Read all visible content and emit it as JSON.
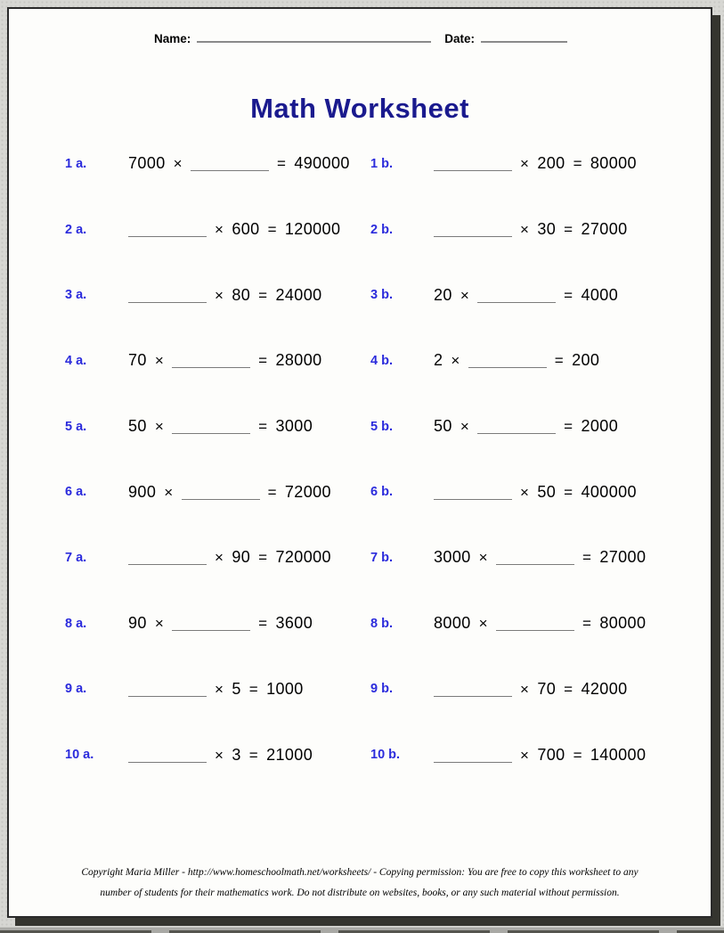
{
  "header": {
    "name_label": "Name:",
    "date_label": "Date:"
  },
  "title": "Math Worksheet",
  "ops": {
    "times": "×",
    "equals": "="
  },
  "rows": [
    {
      "a": {
        "label": "1 a.",
        "factor1": "7000",
        "factor2": null,
        "product": "490000"
      },
      "b": {
        "label": "1 b.",
        "factor1": null,
        "factor2": "200",
        "product": "80000"
      }
    },
    {
      "a": {
        "label": "2 a.",
        "factor1": null,
        "factor2": "600",
        "product": "120000"
      },
      "b": {
        "label": "2 b.",
        "factor1": null,
        "factor2": "30",
        "product": "27000"
      }
    },
    {
      "a": {
        "label": "3 a.",
        "factor1": null,
        "factor2": "80",
        "product": "24000"
      },
      "b": {
        "label": "3 b.",
        "factor1": "20",
        "factor2": null,
        "product": "4000"
      }
    },
    {
      "a": {
        "label": "4 a.",
        "factor1": "70",
        "factor2": null,
        "product": "28000"
      },
      "b": {
        "label": "4 b.",
        "factor1": "2",
        "factor2": null,
        "product": "200"
      }
    },
    {
      "a": {
        "label": "5 a.",
        "factor1": "50",
        "factor2": null,
        "product": "3000"
      },
      "b": {
        "label": "5 b.",
        "factor1": "50",
        "factor2": null,
        "product": "2000"
      }
    },
    {
      "a": {
        "label": "6 a.",
        "factor1": "900",
        "factor2": null,
        "product": "72000"
      },
      "b": {
        "label": "6 b.",
        "factor1": null,
        "factor2": "50",
        "product": "400000"
      }
    },
    {
      "a": {
        "label": "7 a.",
        "factor1": null,
        "factor2": "90",
        "product": "720000"
      },
      "b": {
        "label": "7 b.",
        "factor1": "3000",
        "factor2": null,
        "product": "27000"
      }
    },
    {
      "a": {
        "label": "8 a.",
        "factor1": "90",
        "factor2": null,
        "product": "3600"
      },
      "b": {
        "label": "8 b.",
        "factor1": "8000",
        "factor2": null,
        "product": "80000"
      }
    },
    {
      "a": {
        "label": "9 a.",
        "factor1": null,
        "factor2": "5",
        "product": "1000"
      },
      "b": {
        "label": "9 b.",
        "factor1": null,
        "factor2": "70",
        "product": "42000"
      }
    },
    {
      "a": {
        "label": "10 a.",
        "factor1": null,
        "factor2": "3",
        "product": "21000"
      },
      "b": {
        "label": "10 b.",
        "factor1": null,
        "factor2": "700",
        "product": "140000"
      }
    }
  ],
  "footer": {
    "lines": [
      "Copyright Maria Miller - http://www.homeschoolmath.net/worksheets/ - Copying permission: You are free to copy this worksheet to any",
      "number of students for their mathematics work. Do not distribute on websites, books, or any such material without permission."
    ]
  },
  "colors": {
    "label_blue": "#2b2bdc",
    "title_navy": "#1a1a8e",
    "page_background": "#fdfdfb",
    "desktop_background": "#d7d7d3",
    "blank_line_gray": "#7b7b7b"
  }
}
